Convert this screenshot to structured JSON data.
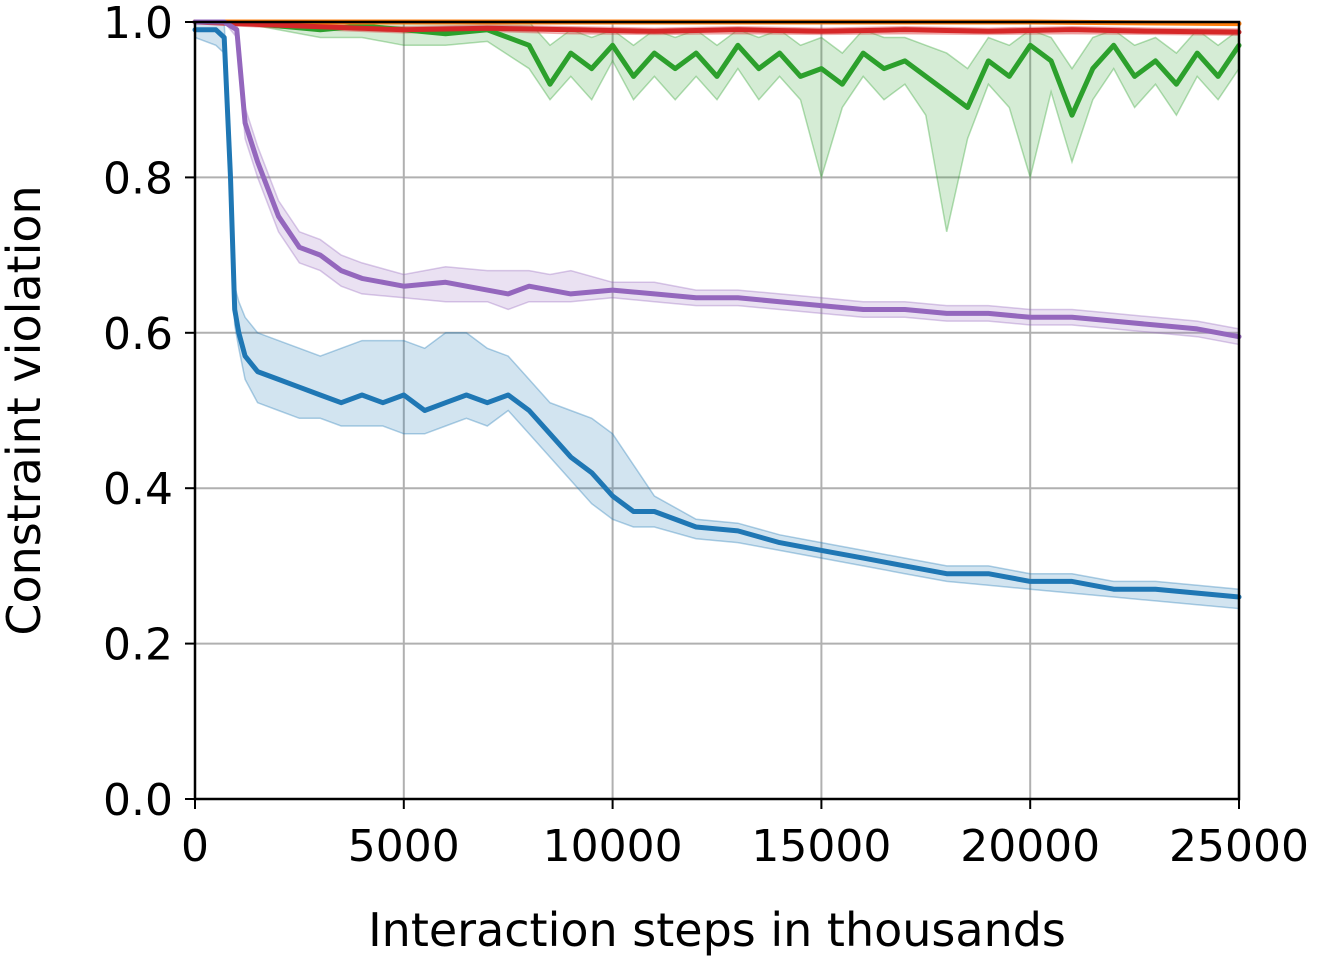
{
  "chart_data": {
    "type": "line",
    "xlabel": "Interaction steps in thousands",
    "ylabel": "Constraint violation",
    "xlim": [
      0,
      25000
    ],
    "ylim": [
      0.0,
      1.0
    ],
    "xticks": [
      0,
      5000,
      10000,
      15000,
      20000,
      25000
    ],
    "xtick_labels": [
      "0",
      "5000",
      "10000",
      "15000",
      "20000",
      "25000"
    ],
    "yticks": [
      0.0,
      0.2,
      0.4,
      0.6,
      0.8,
      1.0
    ],
    "ytick_labels": [
      "0.0",
      "0.2",
      "0.4",
      "0.6",
      "0.8",
      "1.0"
    ],
    "grid": true,
    "legend": "none",
    "series": [
      {
        "color": "#2ca02c",
        "x": [
          0,
          1000,
          2000,
          3000,
          4000,
          5000,
          6000,
          7000,
          8000,
          8500,
          9000,
          9500,
          10000,
          10500,
          11000,
          11500,
          12000,
          12500,
          13000,
          13500,
          14000,
          14500,
          15000,
          15500,
          16000,
          16500,
          17000,
          17500,
          18000,
          18500,
          19000,
          19500,
          20000,
          20500,
          21000,
          21500,
          22000,
          22500,
          23000,
          23500,
          24000,
          24500,
          25000
        ],
        "values": [
          1.0,
          1.0,
          0.995,
          0.99,
          0.995,
          0.99,
          0.985,
          0.99,
          0.97,
          0.92,
          0.96,
          0.94,
          0.97,
          0.93,
          0.96,
          0.94,
          0.96,
          0.93,
          0.97,
          0.94,
          0.96,
          0.93,
          0.94,
          0.92,
          0.96,
          0.94,
          0.95,
          0.93,
          0.91,
          0.89,
          0.95,
          0.93,
          0.97,
          0.95,
          0.88,
          0.94,
          0.97,
          0.93,
          0.95,
          0.92,
          0.96,
          0.93,
          0.97
        ],
        "band_low": [
          1.0,
          1.0,
          0.99,
          0.98,
          0.98,
          0.97,
          0.97,
          0.975,
          0.94,
          0.9,
          0.93,
          0.9,
          0.95,
          0.9,
          0.93,
          0.9,
          0.93,
          0.9,
          0.94,
          0.9,
          0.93,
          0.9,
          0.8,
          0.89,
          0.93,
          0.9,
          0.92,
          0.88,
          0.73,
          0.85,
          0.92,
          0.89,
          0.8,
          0.91,
          0.82,
          0.9,
          0.94,
          0.89,
          0.92,
          0.88,
          0.93,
          0.9,
          0.94
        ],
        "band_high": [
          1.0,
          1.0,
          1.0,
          1.0,
          1.0,
          1.0,
          1.0,
          1.0,
          1.0,
          0.97,
          0.99,
          0.98,
          0.99,
          0.97,
          0.99,
          0.98,
          0.99,
          0.97,
          0.99,
          0.98,
          0.99,
          0.97,
          0.98,
          0.96,
          0.99,
          0.98,
          0.98,
          0.97,
          0.96,
          0.94,
          0.98,
          0.97,
          0.99,
          0.98,
          0.94,
          0.98,
          0.99,
          0.97,
          0.98,
          0.96,
          0.99,
          0.97,
          0.99
        ]
      },
      {
        "color": "#ff7f0e",
        "x": [
          0,
          5000,
          10000,
          15000,
          20000,
          25000
        ],
        "values": [
          1.0,
          1.0,
          1.0,
          1.0,
          1.0,
          0.998
        ],
        "band_low": [
          1.0,
          0.998,
          0.998,
          0.998,
          0.998,
          0.996
        ],
        "band_high": [
          1.0,
          1.0,
          1.0,
          1.0,
          1.0,
          1.0
        ]
      },
      {
        "color": "#d62728",
        "x": [
          0,
          1000,
          3000,
          5000,
          7000,
          9000,
          11000,
          13000,
          15000,
          17000,
          19000,
          21000,
          23000,
          25000
        ],
        "values": [
          1.0,
          0.998,
          0.994,
          0.99,
          0.992,
          0.99,
          0.988,
          0.99,
          0.988,
          0.99,
          0.988,
          0.99,
          0.988,
          0.987
        ],
        "band_low": [
          1.0,
          0.995,
          0.99,
          0.986,
          0.988,
          0.985,
          0.984,
          0.985,
          0.984,
          0.985,
          0.984,
          0.985,
          0.984,
          0.983
        ],
        "band_high": [
          1.0,
          1.0,
          0.997,
          0.994,
          0.996,
          0.994,
          0.992,
          0.994,
          0.992,
          0.994,
          0.992,
          0.994,
          0.992,
          0.991
        ]
      },
      {
        "color": "#9467bd",
        "x": [
          0,
          700,
          1000,
          1200,
          1500,
          2000,
          2500,
          3000,
          3500,
          4000,
          5000,
          6000,
          7000,
          7500,
          8000,
          8500,
          9000,
          10000,
          11000,
          12000,
          13000,
          14000,
          15000,
          16000,
          17000,
          18000,
          19000,
          20000,
          21000,
          22000,
          23000,
          24000,
          25000
        ],
        "values": [
          1.0,
          1.0,
          0.99,
          0.87,
          0.82,
          0.75,
          0.71,
          0.7,
          0.68,
          0.67,
          0.66,
          0.665,
          0.655,
          0.65,
          0.66,
          0.655,
          0.65,
          0.655,
          0.65,
          0.645,
          0.645,
          0.64,
          0.635,
          0.63,
          0.63,
          0.625,
          0.625,
          0.62,
          0.62,
          0.615,
          0.61,
          0.605,
          0.595
        ],
        "band_low": [
          1.0,
          1.0,
          0.98,
          0.85,
          0.8,
          0.73,
          0.69,
          0.68,
          0.66,
          0.65,
          0.645,
          0.64,
          0.64,
          0.63,
          0.64,
          0.64,
          0.64,
          0.645,
          0.64,
          0.635,
          0.635,
          0.63,
          0.625,
          0.62,
          0.62,
          0.615,
          0.615,
          0.61,
          0.61,
          0.605,
          0.6,
          0.595,
          0.585
        ],
        "band_high": [
          1.0,
          1.0,
          1.0,
          0.89,
          0.84,
          0.77,
          0.73,
          0.72,
          0.7,
          0.69,
          0.675,
          0.685,
          0.68,
          0.68,
          0.68,
          0.675,
          0.68,
          0.665,
          0.665,
          0.655,
          0.655,
          0.65,
          0.645,
          0.64,
          0.64,
          0.635,
          0.635,
          0.63,
          0.63,
          0.625,
          0.62,
          0.615,
          0.605
        ]
      },
      {
        "color": "#1f77b4",
        "x": [
          0,
          500,
          700,
          850,
          950,
          1050,
          1200,
          1500,
          2000,
          2500,
          3000,
          3500,
          4000,
          4500,
          5000,
          5500,
          6000,
          6500,
          7000,
          7500,
          8000,
          8500,
          9000,
          9500,
          10000,
          10500,
          11000,
          12000,
          13000,
          14000,
          15000,
          16000,
          17000,
          18000,
          19000,
          20000,
          21000,
          22000,
          23000,
          24000,
          25000
        ],
        "values": [
          0.99,
          0.99,
          0.98,
          0.8,
          0.63,
          0.6,
          0.57,
          0.55,
          0.54,
          0.53,
          0.52,
          0.51,
          0.52,
          0.51,
          0.52,
          0.5,
          0.51,
          0.52,
          0.51,
          0.52,
          0.5,
          0.47,
          0.44,
          0.42,
          0.39,
          0.37,
          0.37,
          0.35,
          0.345,
          0.33,
          0.32,
          0.31,
          0.3,
          0.29,
          0.29,
          0.28,
          0.28,
          0.27,
          0.27,
          0.265,
          0.26
        ],
        "band_low": [
          0.98,
          0.97,
          0.96,
          0.78,
          0.61,
          0.58,
          0.54,
          0.51,
          0.5,
          0.49,
          0.49,
          0.48,
          0.48,
          0.48,
          0.47,
          0.47,
          0.48,
          0.49,
          0.48,
          0.5,
          0.47,
          0.44,
          0.41,
          0.38,
          0.36,
          0.35,
          0.35,
          0.335,
          0.33,
          0.32,
          0.31,
          0.3,
          0.29,
          0.28,
          0.275,
          0.27,
          0.265,
          0.26,
          0.255,
          0.25,
          0.245
        ],
        "band_high": [
          1.0,
          1.0,
          1.0,
          0.82,
          0.66,
          0.64,
          0.62,
          0.6,
          0.59,
          0.58,
          0.57,
          0.58,
          0.59,
          0.59,
          0.59,
          0.58,
          0.6,
          0.6,
          0.58,
          0.57,
          0.54,
          0.51,
          0.5,
          0.49,
          0.47,
          0.43,
          0.39,
          0.36,
          0.355,
          0.34,
          0.33,
          0.32,
          0.31,
          0.3,
          0.3,
          0.29,
          0.29,
          0.28,
          0.28,
          0.275,
          0.27
        ]
      }
    ]
  }
}
